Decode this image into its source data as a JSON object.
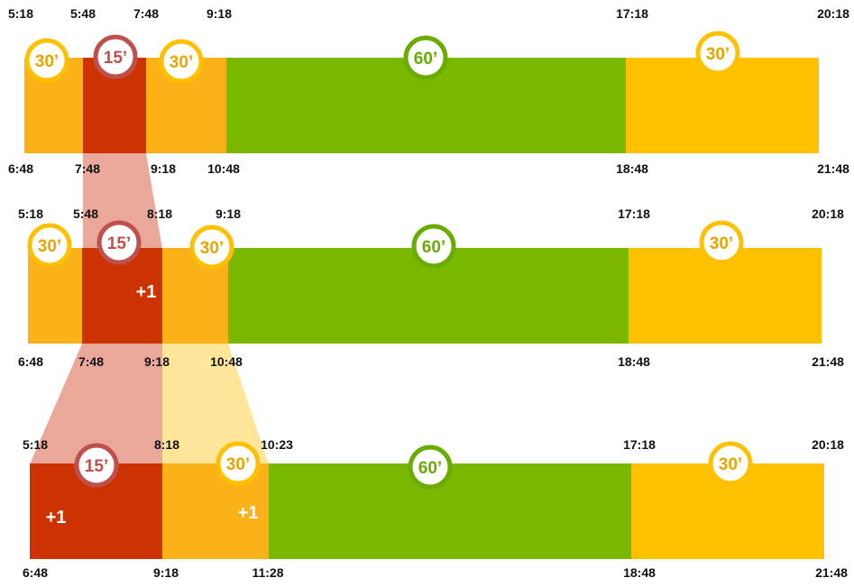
{
  "colors": {
    "orange": "#fbb118",
    "red": "#cc3300",
    "green": "#7ab800",
    "yellow": "#ffc000",
    "zoom_red": "#e9a89a",
    "zoom_yellow": "#ffe699",
    "badge_yellow_ring": "#ffc000",
    "badge_yellow_text": "#e9a400",
    "badge_red_ring": "#c0504d",
    "badge_green_ring": "#6aab00",
    "time_text": "#111111",
    "dark_time_text": "#5a1a10"
  },
  "rows": [
    {
      "id": "row1",
      "segments": [
        {
          "kind": "orange",
          "badge": "30’",
          "badge_color": "yellow"
        },
        {
          "kind": "red",
          "badge": "15’",
          "badge_color": "red"
        },
        {
          "kind": "orange",
          "badge": "30’",
          "badge_color": "yellow"
        },
        {
          "kind": "green",
          "badge": "60’",
          "badge_color": "green"
        },
        {
          "kind": "yellow",
          "badge": "30’",
          "badge_color": "yellow"
        }
      ],
      "top_times": [
        "5:18",
        "5:48",
        "7:48",
        "9:18",
        "17:18",
        "20:18"
      ],
      "bottom_times": [
        "6:48",
        "7:48",
        "9:18",
        "10:48",
        "18:48",
        "21:48"
      ]
    },
    {
      "id": "row2",
      "segments": [
        {
          "kind": "orange",
          "badge": "30’",
          "badge_color": "yellow"
        },
        {
          "kind": "red",
          "badge": "15’",
          "badge_color": "red",
          "plus": "+1"
        },
        {
          "kind": "orange",
          "badge": "30’",
          "badge_color": "yellow"
        },
        {
          "kind": "green",
          "badge": "60’",
          "badge_color": "green"
        },
        {
          "kind": "yellow",
          "badge": "30’",
          "badge_color": "yellow"
        }
      ],
      "top_times": [
        "5:18",
        "5:48",
        "8:18",
        "9:18",
        "17:18",
        "20:18"
      ],
      "bottom_times": [
        "6:48",
        "7:48",
        "9:18",
        "10:48",
        "18:48",
        "21:48"
      ]
    },
    {
      "id": "row3",
      "segments": [
        {
          "kind": "red",
          "badge": "15’",
          "badge_color": "red",
          "plus": "+1"
        },
        {
          "kind": "orange",
          "badge": "30’",
          "badge_color": "yellow",
          "plus": "+1"
        },
        {
          "kind": "green",
          "badge": "60’",
          "badge_color": "green"
        },
        {
          "kind": "yellow",
          "badge": "30’",
          "badge_color": "yellow"
        }
      ],
      "top_times": [
        "5:18",
        "8:18",
        "10:23",
        "17:18",
        "20:18"
      ],
      "bottom_times": [
        "6:48",
        "9:18",
        "11:28",
        "18:48",
        "21:48"
      ]
    }
  ]
}
